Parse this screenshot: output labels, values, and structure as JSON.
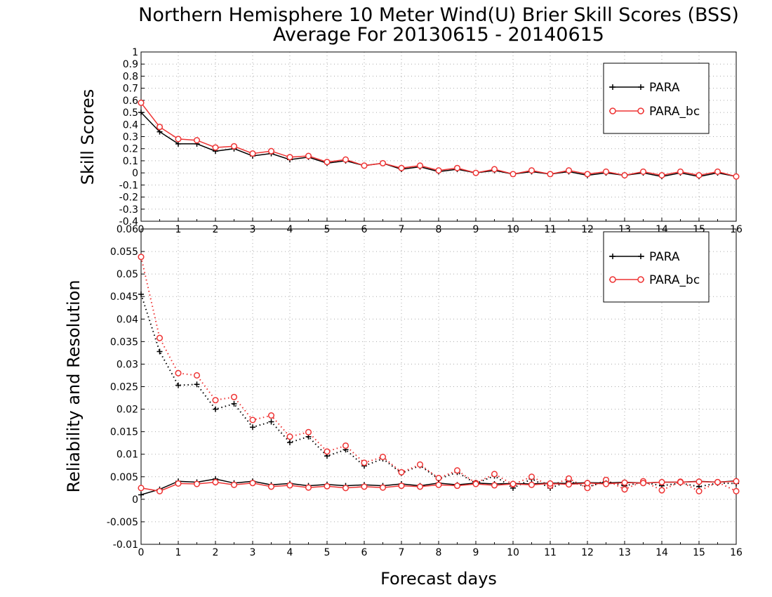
{
  "title_line1": "Northern Hemisphere 10 Meter Wind(U) Brier Skill Scores (BSS)",
  "title_line2": "Average For 20130615 - 20140615",
  "colors": {
    "para": "#000000",
    "para_bc": "#ee3333"
  },
  "chart_data": [
    {
      "type": "line",
      "ylabel": "Skill Scores",
      "xlabel": "",
      "xlim": [
        0,
        16
      ],
      "ylim": [
        -0.4,
        1
      ],
      "xticks": [
        "0",
        "1",
        "2",
        "3",
        "4",
        "5",
        "6",
        "7",
        "8",
        "9",
        "10",
        "11",
        "12",
        "13",
        "14",
        "15",
        "16"
      ],
      "yticks": [
        "1",
        "0.9",
        "0.8",
        "0.7",
        "0.6",
        "0.5",
        "0.4",
        "0.3",
        "0.2",
        "0.1",
        "0",
        "-0.1",
        "-0.2",
        "-0.3",
        "-0.4"
      ],
      "grid": true,
      "legend": "top-right",
      "x": [
        0,
        0.5,
        1,
        1.5,
        2,
        2.5,
        3,
        3.5,
        4,
        4.5,
        5,
        5.5,
        6,
        6.5,
        7,
        7.5,
        8,
        8.5,
        9,
        9.5,
        10,
        10.5,
        11,
        11.5,
        12,
        12.5,
        13,
        13.5,
        14,
        14.5,
        15,
        15.5,
        16
      ],
      "series": [
        {
          "name": "PARA",
          "marker": "plus",
          "values": [
            0.5,
            0.34,
            0.24,
            0.24,
            0.18,
            0.2,
            0.14,
            0.16,
            0.11,
            0.13,
            0.08,
            0.1,
            0.06,
            0.08,
            0.03,
            0.05,
            0.01,
            0.03,
            0.0,
            0.02,
            -0.01,
            0.01,
            -0.01,
            0.01,
            -0.02,
            0.0,
            -0.02,
            0.0,
            -0.03,
            0.0,
            -0.03,
            0.0,
            -0.03
          ]
        },
        {
          "name": "PARA_bc",
          "marker": "circle",
          "values": [
            0.58,
            0.38,
            0.28,
            0.27,
            0.21,
            0.22,
            0.16,
            0.18,
            0.13,
            0.14,
            0.09,
            0.11,
            0.06,
            0.08,
            0.04,
            0.06,
            0.02,
            0.04,
            0.0,
            0.03,
            -0.01,
            0.02,
            -0.01,
            0.02,
            -0.01,
            0.01,
            -0.02,
            0.01,
            -0.02,
            0.01,
            -0.02,
            0.01,
            -0.03
          ]
        }
      ]
    },
    {
      "type": "line",
      "ylabel": "Reliability and Resolution",
      "xlabel": "Forecast days",
      "xlim": [
        0,
        16
      ],
      "ylim": [
        -0.01,
        0.06
      ],
      "xticks": [
        "0",
        "1",
        "2",
        "3",
        "4",
        "5",
        "6",
        "7",
        "8",
        "9",
        "10",
        "11",
        "12",
        "13",
        "14",
        "15",
        "16"
      ],
      "yticks": [
        "0.06",
        "0.055",
        "0.05",
        "0.045",
        "0.04",
        "0.035",
        "0.03",
        "0.025",
        "0.02",
        "0.015",
        "0.01",
        "0.005",
        "0",
        "-0.005",
        "-0.01"
      ],
      "grid": true,
      "legend": "top-right",
      "x": [
        0,
        0.5,
        1,
        1.5,
        2,
        2.5,
        3,
        3.5,
        4,
        4.5,
        5,
        5.5,
        6,
        6.5,
        7,
        7.5,
        8,
        8.5,
        9,
        9.5,
        10,
        10.5,
        11,
        11.5,
        12,
        12.5,
        13,
        13.5,
        14,
        14.5,
        15,
        15.5,
        16
      ],
      "series": [
        {
          "name": "PARA",
          "line": "dotted",
          "marker": "plus",
          "values": [
            0.0455,
            0.0328,
            0.0253,
            0.0255,
            0.02,
            0.0212,
            0.016,
            0.0172,
            0.0126,
            0.0139,
            0.0096,
            0.011,
            0.0074,
            0.009,
            0.0058,
            0.0075,
            0.0045,
            0.006,
            0.0035,
            0.0052,
            0.0025,
            0.0045,
            0.0025,
            0.004,
            0.0027,
            0.004,
            0.003,
            0.0038,
            0.003,
            0.0036,
            0.0028,
            0.0036,
            0.0035
          ]
        },
        {
          "name": "PARA_bc",
          "line": "dotted",
          "marker": "circle",
          "values": [
            0.0538,
            0.0358,
            0.028,
            0.0275,
            0.022,
            0.0227,
            0.0176,
            0.0186,
            0.0139,
            0.0149,
            0.0106,
            0.0119,
            0.0081,
            0.0094,
            0.006,
            0.0077,
            0.0047,
            0.0064,
            0.0036,
            0.0056,
            0.0033,
            0.005,
            0.003,
            0.0046,
            0.0025,
            0.0043,
            0.0022,
            0.004,
            0.002,
            0.0039,
            0.0018,
            0.0038,
            0.0018
          ]
        },
        {
          "name": "",
          "line": "solid",
          "marker": "plus",
          "series_of": "PARA",
          "values": [
            0.001,
            0.0022,
            0.004,
            0.0038,
            0.0045,
            0.0036,
            0.004,
            0.0032,
            0.0035,
            0.003,
            0.0033,
            0.003,
            0.0032,
            0.003,
            0.0034,
            0.003,
            0.0036,
            0.0032,
            0.0036,
            0.0034,
            0.0035,
            0.0034,
            0.0036,
            0.0035,
            0.0037,
            0.0036,
            0.0038,
            0.0036,
            0.0038,
            0.0038,
            0.004,
            0.0038,
            0.0041
          ]
        },
        {
          "name": "",
          "line": "solid",
          "marker": "circle",
          "series_of": "PARA_bc",
          "values": [
            0.0025,
            0.0018,
            0.0035,
            0.0034,
            0.0038,
            0.0032,
            0.0036,
            0.0028,
            0.0031,
            0.0026,
            0.0029,
            0.0025,
            0.0028,
            0.0026,
            0.003,
            0.0028,
            0.0032,
            0.003,
            0.0034,
            0.0031,
            0.0034,
            0.0032,
            0.0035,
            0.0033,
            0.0036,
            0.0034,
            0.0037,
            0.0036,
            0.0038,
            0.0038,
            0.0039,
            0.0038,
            0.004
          ]
        }
      ]
    }
  ]
}
